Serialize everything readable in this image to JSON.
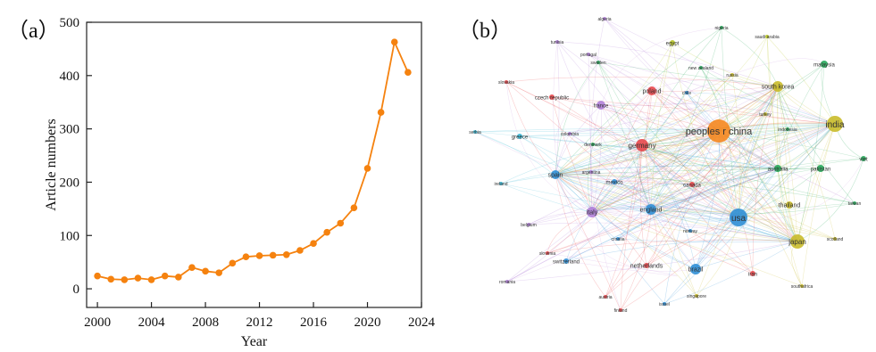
{
  "colors": {
    "line": "#f5820f",
    "axis": "#222222",
    "red": "#e8474b",
    "orange": "#f5871f",
    "blue": "#2f8fd6",
    "cyan": "#36b6d4",
    "green": "#26a85a",
    "yellowgreen": "#b7c422",
    "purple": "#b07fd8",
    "olive": "#c9bb2a"
  },
  "chart_data": [
    {
      "type": "line",
      "panel_label": "（a）",
      "xlabel": "Year",
      "ylabel": "Article numbers",
      "xlim": [
        1999.2,
        2024
      ],
      "ylim": [
        -35,
        500
      ],
      "xticks": [
        2000,
        2004,
        2008,
        2012,
        2016,
        2020,
        2024
      ],
      "yticks": [
        0,
        100,
        200,
        300,
        400,
        500
      ],
      "x": [
        2000,
        2001,
        2002,
        2003,
        2004,
        2005,
        2006,
        2007,
        2008,
        2009,
        2010,
        2011,
        2012,
        2013,
        2014,
        2015,
        2016,
        2017,
        2018,
        2019,
        2020,
        2021,
        2022,
        2023
      ],
      "series": [
        {
          "values": [
            24,
            18,
            17,
            20,
            17,
            24,
            22,
            40,
            33,
            30,
            48,
            60,
            62,
            63,
            64,
            72,
            85,
            106,
            123,
            152,
            226,
            331,
            463,
            406
          ]
        }
      ]
    },
    {
      "type": "network",
      "panel_label": "（b）",
      "nodes": [
        {
          "label": "peoples r china",
          "color": "orange",
          "size": 13,
          "font": 11
        },
        {
          "label": "usa",
          "color": "blue",
          "size": 10,
          "font": 10
        },
        {
          "label": "india",
          "color": "olive",
          "size": 9,
          "font": 10
        },
        {
          "label": "germany",
          "color": "red",
          "size": 7,
          "font": 8
        },
        {
          "label": "japan",
          "color": "olive",
          "size": 8,
          "font": 8
        },
        {
          "label": "south korea",
          "color": "olive",
          "size": 6,
          "font": 7
        },
        {
          "label": "england",
          "color": "blue",
          "size": 6,
          "font": 7
        },
        {
          "label": "italy",
          "color": "purple",
          "size": 6,
          "font": 7
        },
        {
          "label": "spain",
          "color": "blue",
          "size": 5,
          "font": 7
        },
        {
          "label": "poland",
          "color": "red",
          "size": 5,
          "font": 7
        },
        {
          "label": "france",
          "color": "purple",
          "size": 5,
          "font": 6
        },
        {
          "label": "brazil",
          "color": "blue",
          "size": 6,
          "font": 7
        },
        {
          "label": "australia",
          "color": "green",
          "size": 4,
          "font": 6
        },
        {
          "label": "pakistan",
          "color": "green",
          "size": 4,
          "font": 6
        },
        {
          "label": "malaysia",
          "color": "green",
          "size": 4,
          "font": 6
        },
        {
          "label": "thailand",
          "color": "olive",
          "size": 4,
          "font": 7
        },
        {
          "label": "greece",
          "color": "cyan",
          "size": 3,
          "font": 6
        },
        {
          "label": "canada",
          "color": "red",
          "size": 3,
          "font": 6
        },
        {
          "label": "mexico",
          "color": "blue",
          "size": 3,
          "font": 6
        },
        {
          "label": "netherlands",
          "color": "red",
          "size": 3,
          "font": 7
        },
        {
          "label": "switzerland",
          "color": "blue",
          "size": 3,
          "font": 6
        },
        {
          "label": "egypt",
          "color": "yellowgreen",
          "size": 3,
          "font": 6
        },
        {
          "label": "saudi arabia",
          "color": "yellowgreen",
          "size": 2,
          "font": 5
        },
        {
          "label": "nigeria",
          "color": "green",
          "size": 2,
          "font": 5
        },
        {
          "label": "algeria",
          "color": "purple",
          "size": 2,
          "font": 5
        },
        {
          "label": "tunisia",
          "color": "purple",
          "size": 2,
          "font": 5
        },
        {
          "label": "portugal",
          "color": "purple",
          "size": 2,
          "font": 5
        },
        {
          "label": "sweden",
          "color": "green",
          "size": 2,
          "font": 5
        },
        {
          "label": "new zealand",
          "color": "green",
          "size": 2,
          "font": 5
        },
        {
          "label": "slovakia",
          "color": "red",
          "size": 2,
          "font": 5
        },
        {
          "label": "czech republic",
          "color": "red",
          "size": 3,
          "font": 6
        },
        {
          "label": "russia",
          "color": "olive",
          "size": 2,
          "font": 5
        },
        {
          "label": "chile",
          "color": "blue",
          "size": 2,
          "font": 5
        },
        {
          "label": "turkey",
          "color": "olive",
          "size": 2,
          "font": 5
        },
        {
          "label": "serbia",
          "color": "cyan",
          "size": 2,
          "font": 5
        },
        {
          "label": "colombia",
          "color": "purple",
          "size": 2,
          "font": 5
        },
        {
          "label": "denmark",
          "color": "green",
          "size": 2,
          "font": 5
        },
        {
          "label": "indonesia",
          "color": "green",
          "size": 2,
          "font": 5
        },
        {
          "label": "viet",
          "color": "green",
          "size": 3,
          "font": 6
        },
        {
          "label": "argentina",
          "color": "purple",
          "size": 2,
          "font": 5
        },
        {
          "label": "ireland",
          "color": "cyan",
          "size": 2,
          "font": 5
        },
        {
          "label": "taiwan",
          "color": "green",
          "size": 2,
          "font": 5
        },
        {
          "label": "belgium",
          "color": "purple",
          "size": 2,
          "font": 5
        },
        {
          "label": "norway",
          "color": "blue",
          "size": 2,
          "font": 5
        },
        {
          "label": "croatia",
          "color": "blue",
          "size": 2,
          "font": 5
        },
        {
          "label": "scotland",
          "color": "olive",
          "size": 2,
          "font": 5
        },
        {
          "label": "slovenia",
          "color": "red",
          "size": 2,
          "font": 5
        },
        {
          "label": "iran",
          "color": "red",
          "size": 3,
          "font": 6
        },
        {
          "label": "romania",
          "color": "purple",
          "size": 2,
          "font": 5
        },
        {
          "label": "singapore",
          "color": "olive",
          "size": 2,
          "font": 5
        },
        {
          "label": "southafrica",
          "color": "olive",
          "size": 2,
          "font": 5
        },
        {
          "label": "austria",
          "color": "red",
          "size": 2,
          "font": 5
        },
        {
          "label": "israel",
          "color": "blue",
          "size": 2,
          "font": 5
        },
        {
          "label": "finland",
          "color": "red",
          "size": 2,
          "font": 5
        }
      ]
    }
  ]
}
